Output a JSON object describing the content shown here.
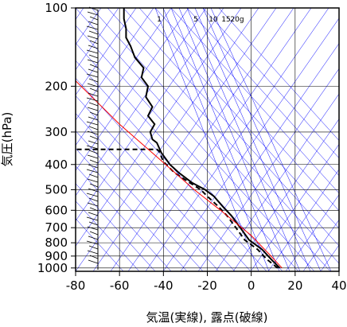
{
  "chart_data": {
    "type": "line",
    "title": "",
    "xlabel": "気温(実線), 露点(破線)",
    "ylabel": "気圧(hPa)",
    "xlim": [
      -80,
      40
    ],
    "ylim": [
      1030,
      100
    ],
    "y_scale": "log",
    "x_ticks": [
      "-80",
      "-60",
      "-40",
      "-20",
      "0",
      "20",
      "40"
    ],
    "y_ticks": [
      "100",
      "200",
      "300",
      "400",
      "500",
      "600",
      "700",
      "800",
      "900",
      "1000"
    ],
    "grid": true,
    "mixing_ratio_labels": [
      "1",
      "5",
      "10",
      "15",
      "20g"
    ],
    "series": [
      {
        "name": "",
        "style": "solid",
        "color": "#000000",
        "points": [
          [
            13,
            1000
          ],
          [
            9,
            925
          ],
          [
            5,
            850
          ],
          [
            -1,
            780
          ],
          [
            -5,
            700
          ],
          [
            -9,
            630
          ],
          [
            -13,
            580
          ],
          [
            -17,
            530
          ],
          [
            -21,
            500
          ],
          [
            -27,
            470
          ],
          [
            -33,
            430
          ],
          [
            -37,
            400
          ],
          [
            -41,
            360
          ],
          [
            -43,
            330
          ],
          [
            -45,
            320
          ],
          [
            -46,
            300
          ],
          [
            -44,
            280
          ],
          [
            -47,
            260
          ],
          [
            -45,
            240
          ],
          [
            -48,
            220
          ],
          [
            -47,
            200
          ],
          [
            -50,
            185
          ],
          [
            -49,
            170
          ],
          [
            -53,
            155
          ],
          [
            -55,
            140
          ],
          [
            -57,
            130
          ],
          [
            -57,
            120
          ],
          [
            -58,
            110
          ],
          [
            -58,
            100
          ]
        ]
      },
      {
        "name": "",
        "style": "dashed",
        "color": "#000000",
        "points": [
          [
            12,
            1000
          ],
          [
            7,
            925
          ],
          [
            3,
            850
          ],
          [
            -3,
            780
          ],
          [
            -7,
            700
          ],
          [
            -11,
            630
          ],
          [
            -15,
            580
          ],
          [
            -20,
            530
          ],
          [
            -23,
            500
          ],
          [
            -28,
            470
          ],
          [
            -35,
            430
          ],
          [
            -40,
            390
          ],
          [
            -42,
            355
          ],
          [
            -43,
            350
          ],
          [
            -80,
            350
          ]
        ]
      },
      {
        "name": "",
        "style": "solid",
        "color": "#ff0000",
        "points": [
          [
            14,
            1000
          ],
          [
            9,
            900
          ],
          [
            0,
            750
          ],
          [
            -14,
            600
          ],
          [
            -26,
            500
          ],
          [
            -42,
            380
          ],
          [
            -60,
            280
          ],
          [
            -83,
            180
          ]
        ]
      }
    ],
    "reference_lines_color": "#0000ff"
  }
}
